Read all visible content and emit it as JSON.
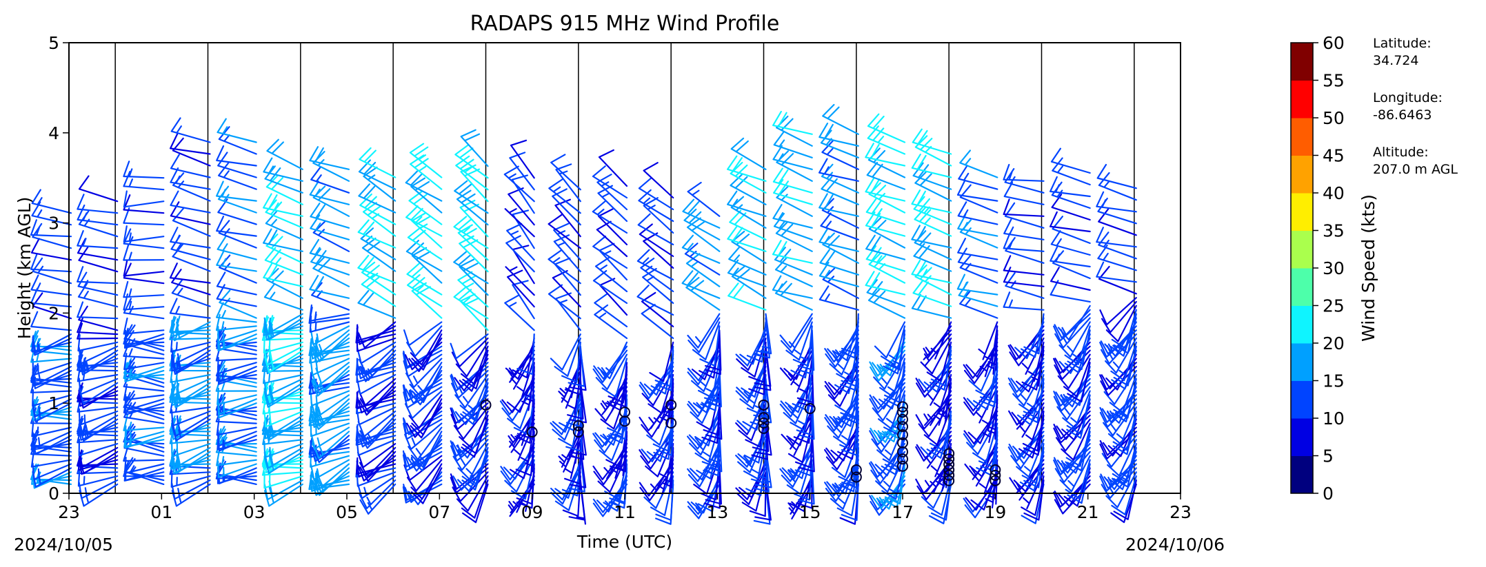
{
  "chart_data": {
    "type": "wind_barb_profile",
    "title": "RADAPS 915 MHz Wind Profile",
    "xlabel": "Time (UTC)",
    "ylabel": "Height (km AGL)",
    "x_tick_labels": [
      "23",
      "01",
      "03",
      "05",
      "07",
      "09",
      "11",
      "13",
      "15",
      "17",
      "19",
      "21",
      "23"
    ],
    "y_tick_labels": [
      "0",
      "1",
      "2",
      "3",
      "4",
      "5"
    ],
    "ylim": [
      0,
      5
    ],
    "start_date": "2024/10/05",
    "end_date": "2024/10/06",
    "hours": [
      "23",
      "00",
      "01",
      "02",
      "03",
      "04",
      "05",
      "06",
      "07",
      "08",
      "09",
      "10",
      "11",
      "12",
      "13",
      "14",
      "15",
      "16",
      "17",
      "18",
      "19",
      "20",
      "21",
      "22"
    ],
    "colorbar": {
      "label": "Wind Speed (kts)",
      "ticks": [
        "0",
        "5",
        "10",
        "15",
        "20",
        "25",
        "30",
        "35",
        "40",
        "45",
        "50",
        "55",
        "60"
      ],
      "colors": [
        "#00007f",
        "#0000e3",
        "#0044ff",
        "#00a0ff",
        "#0ff4ff",
        "#4dffaa",
        "#aaff4d",
        "#ffee00",
        "#ffa200",
        "#ff5d00",
        "#ff0000",
        "#800000"
      ]
    },
    "station": {
      "latitude_label": "Latitude:",
      "latitude": "34.724",
      "longitude_label": "Longitude:",
      "longitude": "-86.6463",
      "altitude_label": "Altitude:",
      "altitude": "207.0 m AGL"
    },
    "profiles": [
      {
        "top_km": 3.2,
        "upper_speed": 12,
        "lower_speed": 13,
        "turn_km": 1.8,
        "up_dir": 280,
        "lo_dir": 260
      },
      {
        "top_km": 3.3,
        "upper_speed": 12,
        "lower_speed": 12,
        "turn_km": 1.8,
        "up_dir": 280,
        "lo_dir": 255
      },
      {
        "top_km": 3.5,
        "upper_speed": 12,
        "lower_speed": 13,
        "turn_km": 1.8,
        "up_dir": 270,
        "lo_dir": 270
      },
      {
        "top_km": 3.9,
        "upper_speed": 12,
        "lower_speed": 17,
        "turn_km": 1.9,
        "up_dir": 285,
        "lo_dir": 255
      },
      {
        "top_km": 3.9,
        "upper_speed": 14,
        "lower_speed": 14,
        "turn_km": 1.9,
        "up_dir": 285,
        "lo_dir": 265
      },
      {
        "top_km": 3.7,
        "upper_speed": 20,
        "lower_speed": 19,
        "turn_km": 2.0,
        "up_dir": 290,
        "lo_dir": 255
      },
      {
        "top_km": 3.6,
        "upper_speed": 17,
        "lower_speed": 17,
        "turn_km": 2.0,
        "up_dir": 290,
        "lo_dir": 245
      },
      {
        "top_km": 3.6,
        "upper_speed": 20,
        "lower_speed": 11,
        "turn_km": 1.9,
        "up_dir": 300,
        "lo_dir": 240
      },
      {
        "top_km": 3.6,
        "upper_speed": 21,
        "lower_speed": 12,
        "turn_km": 1.9,
        "up_dir": 305,
        "lo_dir": 225
      },
      {
        "top_km": 3.7,
        "upper_speed": 21,
        "lower_speed": 11,
        "turn_km": 1.8,
        "up_dir": 310,
        "lo_dir": 215
      },
      {
        "top_km": 3.6,
        "upper_speed": 10,
        "lower_speed": 8,
        "turn_km": 1.8,
        "up_dir": 320,
        "lo_dir": 200
      },
      {
        "top_km": 3.4,
        "upper_speed": 12,
        "lower_speed": 9,
        "turn_km": 1.8,
        "up_dir": 315,
        "lo_dir": 190
      },
      {
        "top_km": 3.5,
        "upper_speed": 12,
        "lower_speed": 10,
        "turn_km": 1.7,
        "up_dir": 310,
        "lo_dir": 200
      },
      {
        "top_km": 3.3,
        "upper_speed": 12,
        "lower_speed": 9,
        "turn_km": 1.7,
        "up_dir": 305,
        "lo_dir": 200
      },
      {
        "top_km": 3.2,
        "upper_speed": 17,
        "lower_speed": 12,
        "turn_km": 2.0,
        "up_dir": 300,
        "lo_dir": 195
      },
      {
        "top_km": 3.6,
        "upper_speed": 19,
        "lower_speed": 11,
        "turn_km": 2.0,
        "up_dir": 295,
        "lo_dir": 190
      },
      {
        "top_km": 4.0,
        "upper_speed": 18,
        "lower_speed": 10,
        "turn_km": 2.0,
        "up_dir": 290,
        "lo_dir": 195
      },
      {
        "top_km": 4.0,
        "upper_speed": 16,
        "lower_speed": 12,
        "turn_km": 2.0,
        "up_dir": 290,
        "lo_dir": 200
      },
      {
        "top_km": 4.0,
        "upper_speed": 21,
        "lower_speed": 13,
        "turn_km": 1.9,
        "up_dir": 290,
        "lo_dir": 205
      },
      {
        "top_km": 3.8,
        "upper_speed": 21,
        "lower_speed": 8,
        "turn_km": 1.9,
        "up_dir": 290,
        "lo_dir": 205
      },
      {
        "top_km": 3.6,
        "upper_speed": 14,
        "lower_speed": 9,
        "turn_km": 1.9,
        "up_dir": 285,
        "lo_dir": 200
      },
      {
        "top_km": 3.5,
        "upper_speed": 12,
        "lower_speed": 10,
        "turn_km": 2.0,
        "up_dir": 280,
        "lo_dir": 205
      },
      {
        "top_km": 3.6,
        "upper_speed": 12,
        "lower_speed": 11,
        "turn_km": 2.1,
        "up_dir": 285,
        "lo_dir": 210
      },
      {
        "top_km": 3.4,
        "upper_speed": 12,
        "lower_speed": 12,
        "turn_km": 2.2,
        "up_dir": 285,
        "lo_dir": 210
      }
    ],
    "calm_circles": [
      {
        "hour": 8,
        "heights_km": [
          0.98
        ]
      },
      {
        "hour": 9,
        "heights_km": [
          0.68
        ]
      },
      {
        "hour": 10,
        "heights_km": [
          0.68,
          0.75
        ]
      },
      {
        "hour": 11,
        "heights_km": [
          0.8,
          0.9
        ]
      },
      {
        "hour": 12,
        "heights_km": [
          0.78,
          0.98
        ]
      },
      {
        "hour": 14,
        "heights_km": [
          0.72,
          0.78,
          0.84,
          0.98
        ]
      },
      {
        "hour": 15,
        "heights_km": [
          0.94
        ]
      },
      {
        "hour": 16,
        "heights_km": [
          0.18,
          0.26
        ]
      },
      {
        "hour": 17,
        "heights_km": [
          0.3,
          0.38,
          0.46,
          0.56,
          0.65,
          0.74,
          0.82,
          0.9,
          0.96
        ]
      },
      {
        "hour": 18,
        "heights_km": [
          0.14,
          0.2,
          0.26,
          0.32,
          0.38,
          0.44
        ]
      },
      {
        "hour": 19,
        "heights_km": [
          0.14,
          0.2,
          0.26
        ]
      }
    ]
  }
}
